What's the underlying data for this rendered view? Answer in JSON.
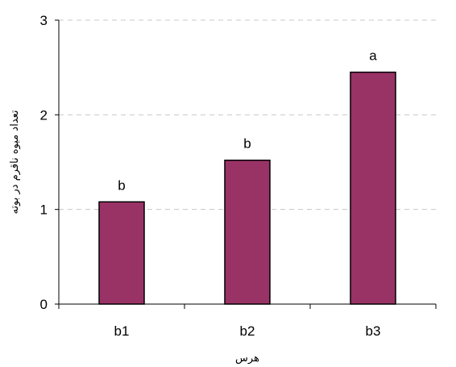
{
  "chart_data": {
    "type": "bar",
    "categories": [
      "b1",
      "b2",
      "b3"
    ],
    "values": [
      1.08,
      1.52,
      2.45
    ],
    "data_labels": [
      "b",
      "b",
      "a"
    ],
    "xlabel": "هرس",
    "ylabel": "تعداد میوه ناقرم در بوته",
    "ylim": [
      0,
      3
    ],
    "yticks": [
      "0",
      "1",
      "2",
      "3"
    ],
    "grid": true,
    "legend": "none",
    "bar_color": "#993366",
    "grid_color": "#c8c8c8"
  }
}
